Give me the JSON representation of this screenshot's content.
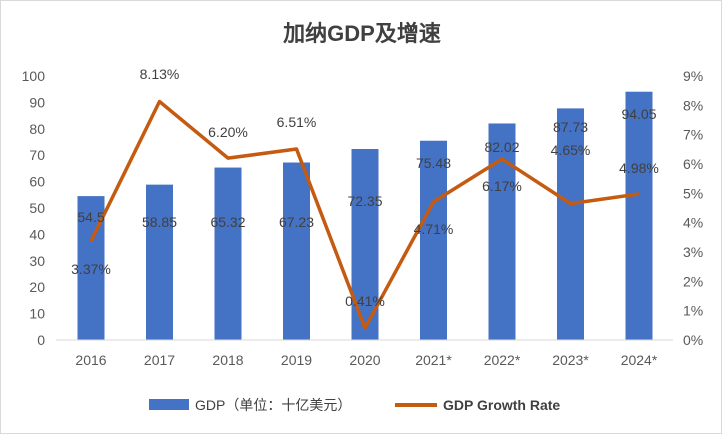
{
  "chart_data": {
    "type": "bar+line",
    "title": "加纳GDP及增速",
    "categories": [
      "2016",
      "2017",
      "2018",
      "2019",
      "2020",
      "2021*",
      "2022*",
      "2023*",
      "2024*"
    ],
    "series": [
      {
        "name": "GDP（单位：十亿美元）",
        "type": "bar",
        "axis": "left",
        "color": "#4472C4",
        "values": [
          54.5,
          58.85,
          65.32,
          67.23,
          72.35,
          75.48,
          82.02,
          87.73,
          94.05
        ],
        "labels": [
          "54.5",
          "58.85",
          "65.32",
          "67.23",
          "72.35",
          "75.48",
          "82.02",
          "87.73",
          "94.05"
        ]
      },
      {
        "name": "GDP Growth Rate",
        "type": "line",
        "axis": "right",
        "color": "#C55A11",
        "values": [
          3.37,
          8.13,
          6.2,
          6.51,
          0.41,
          4.71,
          6.17,
          4.65,
          4.98
        ],
        "labels": [
          "3.37%",
          "8.13%",
          "6.20%",
          "6.51%",
          "0.41%",
          "4.71%",
          "6.17%",
          "4.65%",
          "4.98%"
        ]
      }
    ],
    "y_left": {
      "range": [
        0,
        100
      ],
      "ticks": [
        "0",
        "10",
        "20",
        "30",
        "40",
        "50",
        "60",
        "70",
        "80",
        "90",
        "100"
      ]
    },
    "y_right": {
      "range": [
        0,
        9
      ],
      "ticks": [
        "0%",
        "1%",
        "2%",
        "3%",
        "4%",
        "5%",
        "6%",
        "7%",
        "8%",
        "9%"
      ]
    },
    "grid": false,
    "legend": "bottom"
  }
}
